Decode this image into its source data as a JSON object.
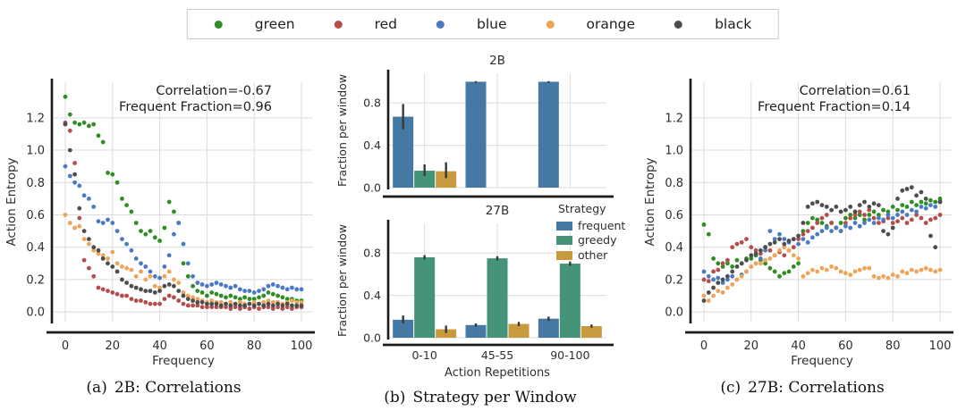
{
  "colors": {
    "grid": "#dcdcdc",
    "spine": "#1a1a1a",
    "text": "#2e2e2e",
    "error_bar": "#3a3a3a"
  },
  "legend": {
    "entries": [
      {
        "label": "green",
        "color": "#2f8e22"
      },
      {
        "label": "red",
        "color": "#b44d4b"
      },
      {
        "label": "blue",
        "color": "#4a7ac5"
      },
      {
        "label": "orange",
        "color": "#efa457"
      },
      {
        "label": "black",
        "color": "#4d4d4d"
      }
    ]
  },
  "bar_legend": {
    "title": "Strategy",
    "entries": [
      {
        "label": "frequent",
        "color": "#4678a4"
      },
      {
        "label": "greedy",
        "color": "#459478"
      },
      {
        "label": "other",
        "color": "#c79a3e"
      }
    ]
  },
  "captions": {
    "a": {
      "tag": "(a)",
      "text": "2B: Correlations"
    },
    "b": {
      "tag": "(b)",
      "text": "Strategy per Window"
    },
    "c": {
      "tag": "(c)",
      "text": "27B: Correlations"
    }
  },
  "chart_data": [
    {
      "id": "panel-a",
      "type": "scatter",
      "annotation": [
        "Correlation=-0.67",
        "Frequent Fraction=0.96"
      ],
      "xlabel": "Frequency",
      "ylabel": "Action Entropy",
      "xlim": [
        0,
        100
      ],
      "ylim": [
        -0.06,
        1.42
      ],
      "xticks": [
        0,
        20,
        40,
        60,
        80,
        100
      ],
      "yticks": [
        0.0,
        0.2,
        0.4,
        0.6,
        0.8,
        1.0,
        1.2
      ],
      "grid": true,
      "x_start": 0,
      "x_step": 2,
      "series": [
        {
          "name": "green",
          "color": "#2f8e22",
          "y": [
            1.33,
            1.22,
            1.17,
            1.16,
            1.17,
            1.15,
            1.16,
            1.09,
            1.05,
            0.86,
            0.85,
            0.8,
            0.7,
            0.66,
            0.62,
            0.55,
            0.5,
            0.48,
            0.5,
            0.46,
            0.44,
            0.52,
            0.68,
            0.62,
            0.55,
            0.3,
            0.22,
            0.16,
            0.13,
            0.12,
            0.1,
            0.12,
            0.11,
            0.1,
            0.09,
            0.1,
            0.09,
            0.08,
            0.09,
            0.08,
            0.08,
            0.09,
            0.1,
            0.12,
            0.11,
            0.1,
            0.09,
            0.08,
            0.08,
            0.07,
            0.07
          ]
        },
        {
          "name": "red",
          "color": "#b44d4b",
          "y": [
            1.17,
            1.12,
            0.92,
            0.58,
            0.32,
            0.27,
            0.22,
            0.15,
            0.14,
            0.13,
            0.12,
            0.11,
            0.1,
            0.1,
            0.08,
            0.07,
            0.07,
            0.06,
            0.05,
            0.05,
            0.05,
            0.08,
            0.1,
            0.09,
            0.07,
            0.05,
            0.04,
            0.04,
            0.04,
            0.03,
            0.03,
            0.03,
            0.03,
            0.03,
            0.03,
            0.02,
            0.03,
            0.02,
            0.03,
            0.02,
            0.03,
            0.02,
            0.03,
            0.03,
            0.02,
            0.03,
            0.02,
            0.03,
            0.02,
            0.03,
            0.03
          ]
        },
        {
          "name": "blue",
          "color": "#4a7ac5",
          "y": [
            0.9,
            0.84,
            0.8,
            0.78,
            0.72,
            0.7,
            0.65,
            0.56,
            0.55,
            0.57,
            0.55,
            0.5,
            0.45,
            0.42,
            0.38,
            0.33,
            0.3,
            0.28,
            0.25,
            0.22,
            0.21,
            0.28,
            0.35,
            0.48,
            0.55,
            0.42,
            0.3,
            0.22,
            0.18,
            0.17,
            0.16,
            0.17,
            0.18,
            0.17,
            0.16,
            0.15,
            0.16,
            0.14,
            0.13,
            0.13,
            0.12,
            0.13,
            0.14,
            0.16,
            0.17,
            0.16,
            0.15,
            0.14,
            0.15,
            0.14,
            0.14
          ]
        },
        {
          "name": "orange",
          "color": "#efa457",
          "y": [
            0.6,
            0.55,
            0.52,
            0.53,
            0.45,
            0.42,
            0.38,
            0.36,
            0.35,
            0.33,
            0.37,
            0.3,
            0.28,
            0.27,
            0.26,
            0.22,
            0.25,
            0.2,
            0.22,
            0.16,
            0.15,
            0.22,
            0.25,
            0.2,
            0.18,
            0.12,
            0.1,
            0.09,
            0.08,
            0.07,
            0.06,
            0.07,
            0.06,
            0.06,
            0.05,
            0.06,
            0.05,
            0.06,
            0.05,
            0.05,
            0.06,
            0.05,
            0.06,
            0.07,
            0.06,
            0.06,
            0.05,
            0.06,
            0.07,
            0.06,
            0.06
          ]
        },
        {
          "name": "black",
          "color": "#4d4d4d",
          "y": [
            1.16,
            1.0,
            0.85,
            0.64,
            0.5,
            0.45,
            0.4,
            0.38,
            0.33,
            0.3,
            0.28,
            0.25,
            0.2,
            0.18,
            0.16,
            0.15,
            0.14,
            0.13,
            0.13,
            0.12,
            0.13,
            0.16,
            0.17,
            0.16,
            0.13,
            0.1,
            0.08,
            0.07,
            0.06,
            0.06,
            0.05,
            0.05,
            0.05,
            0.04,
            0.05,
            0.04,
            0.05,
            0.04,
            0.04,
            0.05,
            0.04,
            0.05,
            0.04,
            0.05,
            0.04,
            0.05,
            0.04,
            0.05,
            0.04,
            0.04,
            0.04
          ]
        }
      ]
    },
    {
      "id": "panel-b-top",
      "type": "bar",
      "title": "2B",
      "ylabel": "Fraction per window",
      "ylim": [
        0,
        1.08
      ],
      "yticks": [
        0.0,
        0.4,
        0.8
      ],
      "grid": true,
      "categories": [
        "0-10",
        "45-55",
        "90-100"
      ],
      "show_category_labels": false,
      "series": [
        {
          "name": "frequent",
          "color": "#4678a4",
          "values": [
            0.67,
            1.0,
            1.0
          ],
          "err_lo": [
            0.55,
            0.99,
            0.99
          ],
          "err_hi": [
            0.79,
            1.005,
            1.005
          ]
        },
        {
          "name": "greedy",
          "color": "#459478",
          "values": [
            0.16,
            null,
            null
          ],
          "err_lo": [
            0.11,
            null,
            null
          ],
          "err_hi": [
            0.22,
            null,
            null
          ]
        },
        {
          "name": "other",
          "color": "#c79a3e",
          "values": [
            0.155,
            null,
            null
          ],
          "err_lo": [
            0.09,
            null,
            null
          ],
          "err_hi": [
            0.24,
            null,
            null
          ]
        }
      ]
    },
    {
      "id": "panel-b-bottom",
      "type": "bar",
      "title": "27B",
      "xlabel": "Action Repetitions",
      "ylabel": "Fraction per window",
      "ylim": [
        0,
        1.08
      ],
      "yticks": [
        0.0,
        0.4,
        0.8
      ],
      "grid": true,
      "categories": [
        "0-10",
        "45-55",
        "90-100"
      ],
      "show_category_labels": true,
      "series": [
        {
          "name": "frequent",
          "color": "#4678a4",
          "values": [
            0.17,
            0.12,
            0.18
          ],
          "err_lo": [
            0.135,
            0.105,
            0.16
          ],
          "err_hi": [
            0.21,
            0.135,
            0.2
          ]
        },
        {
          "name": "greedy",
          "color": "#459478",
          "values": [
            0.76,
            0.75,
            0.7
          ],
          "err_lo": [
            0.74,
            0.73,
            0.68
          ],
          "err_hi": [
            0.78,
            0.77,
            0.72
          ]
        },
        {
          "name": "other",
          "color": "#c79a3e",
          "values": [
            0.08,
            0.13,
            0.11
          ],
          "err_lo": [
            0.045,
            0.11,
            0.095
          ],
          "err_hi": [
            0.115,
            0.15,
            0.125
          ]
        }
      ]
    },
    {
      "id": "panel-c",
      "type": "scatter",
      "annotation": [
        "Correlation=0.61",
        "Frequent Fraction=0.14"
      ],
      "xlabel": "Frequency",
      "ylabel": "Action Entropy",
      "xlim": [
        0,
        100
      ],
      "ylim": [
        -0.06,
        1.42
      ],
      "xticks": [
        0,
        20,
        40,
        60,
        80,
        100
      ],
      "yticks": [
        0.0,
        0.2,
        0.4,
        0.6,
        0.8,
        1.0,
        1.2
      ],
      "grid": true,
      "x_start": 0,
      "x_step": 2,
      "series": [
        {
          "name": "green",
          "color": "#2f8e22",
          "y": [
            0.54,
            0.48,
            0.33,
            0.3,
            0.28,
            0.3,
            0.28,
            0.32,
            0.3,
            0.33,
            0.33,
            0.35,
            0.32,
            0.3,
            0.27,
            0.25,
            0.22,
            0.24,
            0.25,
            0.28,
            0.3,
            0.5,
            0.55,
            0.58,
            0.57,
            0.55,
            0.53,
            0.55,
            0.52,
            0.55,
            0.58,
            0.6,
            0.58,
            0.6,
            0.57,
            0.6,
            0.62,
            0.6,
            0.63,
            0.62,
            0.65,
            0.63,
            0.66,
            0.65,
            0.68,
            0.66,
            0.68,
            0.67,
            0.69,
            0.68,
            0.7
          ]
        },
        {
          "name": "red",
          "color": "#b44d4b",
          "y": [
            0.2,
            0.19,
            0.25,
            0.26,
            0.3,
            0.32,
            0.4,
            0.42,
            0.43,
            0.45,
            0.4,
            0.38,
            0.36,
            0.4,
            0.38,
            0.35,
            0.37,
            0.35,
            0.38,
            0.4,
            0.45,
            0.48,
            0.5,
            0.52,
            0.55,
            0.58,
            0.6,
            0.55,
            0.52,
            0.5,
            0.55,
            0.58,
            0.6,
            0.62,
            0.6,
            0.63,
            0.58,
            0.55,
            0.56,
            0.58,
            0.55,
            0.56,
            0.58,
            0.55,
            0.57,
            0.6,
            0.58,
            0.55,
            0.57,
            0.58,
            0.6
          ]
        },
        {
          "name": "blue",
          "color": "#4a7ac5",
          "y": [
            0.25,
            0.22,
            0.2,
            0.21,
            0.18,
            0.2,
            0.22,
            0.2,
            0.23,
            0.25,
            0.28,
            0.3,
            0.33,
            0.38,
            0.5,
            0.45,
            0.48,
            0.45,
            0.43,
            0.45,
            0.42,
            0.45,
            0.43,
            0.46,
            0.48,
            0.5,
            0.52,
            0.5,
            0.52,
            0.5,
            0.53,
            0.52,
            0.55,
            0.53,
            0.55,
            0.57,
            0.55,
            0.58,
            0.57,
            0.6,
            0.58,
            0.6,
            0.62,
            0.6,
            0.63,
            0.62,
            0.65,
            0.64,
            0.66,
            0.65,
            0.68
          ]
        },
        {
          "name": "orange",
          "color": "#efa457",
          "y": [
            0.1,
            0.07,
            0.1,
            0.13,
            0.12,
            0.15,
            0.17,
            0.2,
            0.22,
            0.25,
            0.28,
            0.3,
            0.3,
            0.32,
            0.33,
            0.35,
            0.38,
            0.4,
            0.38,
            0.35,
            0.33,
            0.22,
            0.24,
            0.26,
            0.25,
            0.27,
            0.26,
            0.28,
            0.27,
            0.25,
            0.24,
            0.23,
            0.25,
            0.26,
            0.27,
            0.27,
            0.22,
            0.21,
            0.22,
            0.21,
            0.23,
            0.22,
            0.25,
            0.24,
            0.26,
            0.25,
            0.26,
            0.27,
            0.26,
            0.25,
            0.26
          ]
        },
        {
          "name": "black",
          "color": "#4d4d4d",
          "y": [
            0.07,
            0.12,
            0.15,
            0.18,
            0.2,
            0.22,
            0.25,
            0.28,
            0.3,
            0.32,
            0.35,
            0.36,
            0.38,
            0.4,
            0.42,
            0.43,
            0.45,
            0.42,
            0.44,
            0.45,
            0.47,
            0.55,
            0.65,
            0.67,
            0.68,
            0.66,
            0.65,
            0.63,
            0.65,
            0.62,
            0.63,
            0.65,
            0.62,
            0.66,
            0.68,
            0.65,
            0.67,
            0.66,
            0.5,
            0.48,
            0.52,
            0.7,
            0.75,
            0.76,
            0.77,
            0.72,
            0.74,
            0.7,
            0.47,
            0.4,
            0.68
          ]
        }
      ]
    }
  ]
}
